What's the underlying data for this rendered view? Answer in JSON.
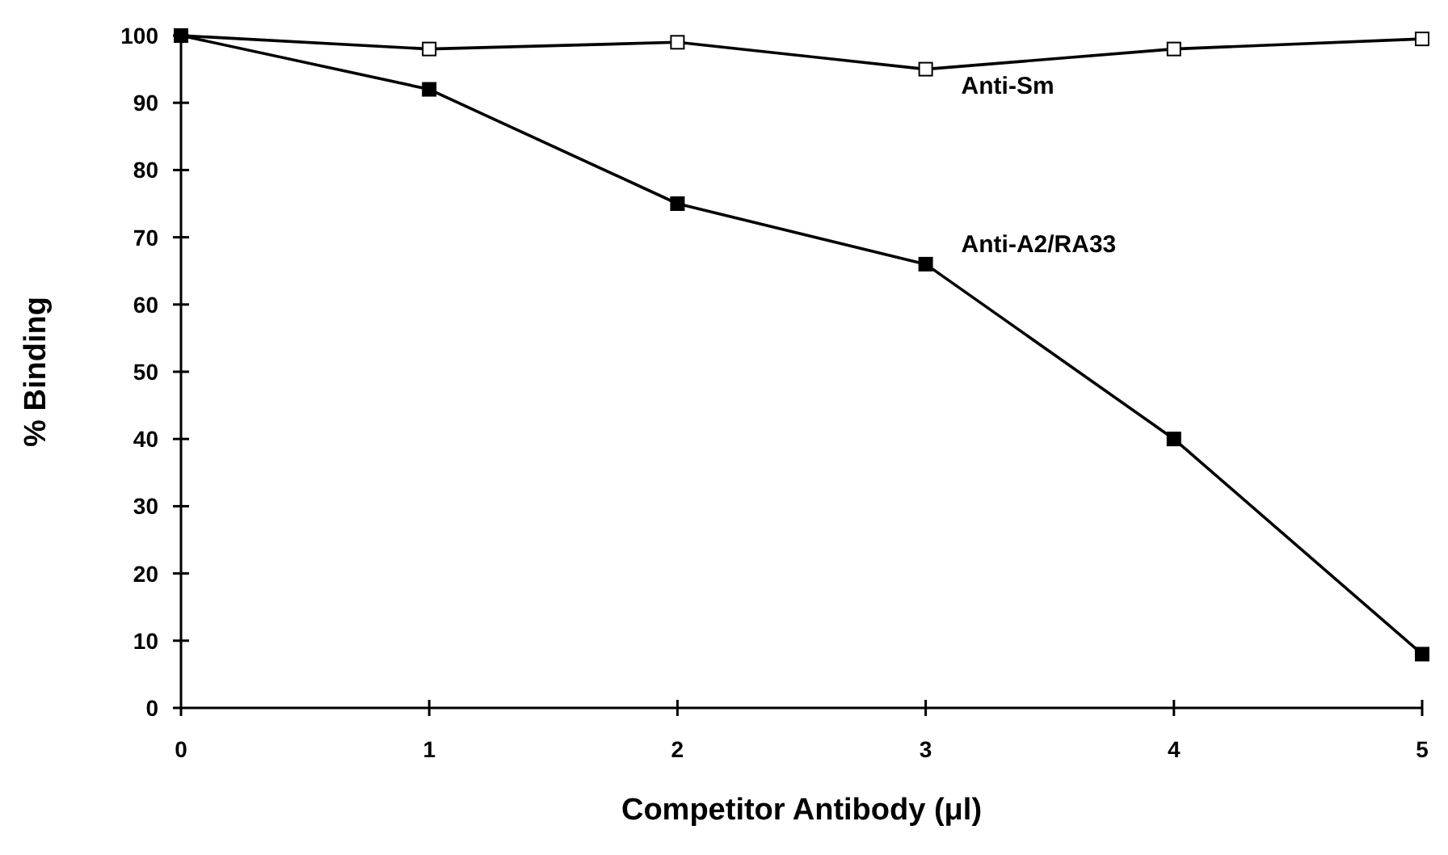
{
  "chart_data": {
    "type": "line",
    "xlabel": "Competitor Antibody (μl)",
    "ylabel": "% Binding",
    "x": [
      0,
      1,
      2,
      3,
      4,
      5
    ],
    "series": [
      {
        "name": "Anti-Sm",
        "color": "#000000",
        "values": [
          100,
          98,
          99,
          95,
          98,
          99.5
        ]
      },
      {
        "name": "Anti-A2/RA33",
        "color": "#000000",
        "values": [
          100,
          92,
          75,
          66,
          40,
          8
        ]
      }
    ],
    "xlim": [
      0,
      5
    ],
    "ylim": [
      0,
      100
    ],
    "xticks": [
      0,
      1,
      2,
      3,
      4,
      5
    ],
    "yticks": [
      0,
      10,
      20,
      30,
      40,
      50,
      60,
      70,
      80,
      90,
      100
    ],
    "marker": "square",
    "line_style": "solid",
    "grid": false
  }
}
